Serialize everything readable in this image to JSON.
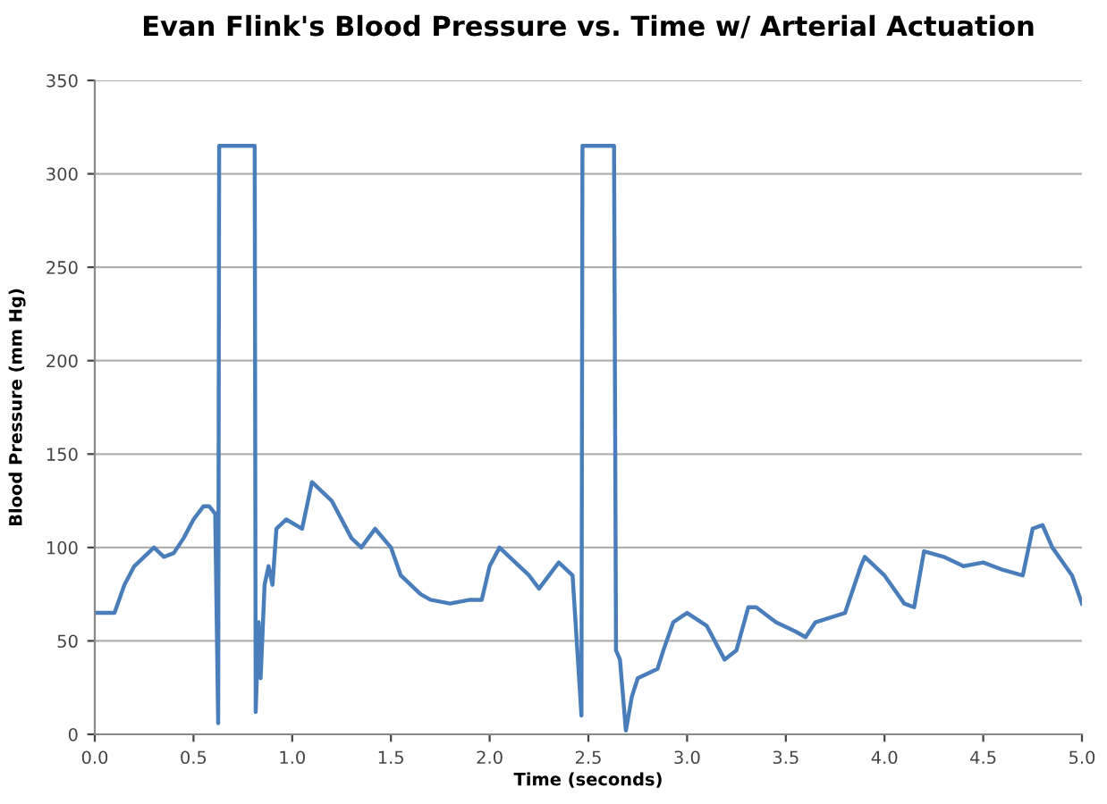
{
  "chart_data": {
    "type": "line",
    "title": "Evan Flink's Blood Pressure vs. Time w/ Arterial Actuation",
    "xlabel": "Time (seconds)",
    "ylabel": "Blood Pressure (mm Hg)",
    "xlim": [
      0,
      5
    ],
    "xticks": [
      {
        "value": 0,
        "label": "0.0"
      },
      {
        "value": 0.5,
        "label": "0.5"
      },
      {
        "value": 1,
        "label": "1.0"
      },
      {
        "value": 1.5,
        "label": "1.5"
      },
      {
        "value": 2,
        "label": "2.0"
      },
      {
        "value": 2.5,
        "label": "2.5"
      },
      {
        "value": 3,
        "label": "3.0"
      },
      {
        "value": 3.5,
        "label": "3.5"
      },
      {
        "value": 4,
        "label": "4.0"
      },
      {
        "value": 4.5,
        "label": "4.5"
      },
      {
        "value": 5,
        "label": "5.0"
      }
    ],
    "ylim": [
      0,
      350
    ],
    "yticks": [
      0,
      50,
      100,
      150,
      200,
      250,
      300,
      350
    ],
    "grid": "y",
    "marker": "none",
    "line_style": "solid",
    "series": [
      {
        "color": "#4a7ebb",
        "x": [
          0.0,
          0.1,
          0.15,
          0.2,
          0.25,
          0.3,
          0.35,
          0.4,
          0.45,
          0.5,
          0.55,
          0.58,
          0.61,
          0.625,
          0.63,
          0.81,
          0.815,
          0.83,
          0.84,
          0.86,
          0.88,
          0.9,
          0.92,
          0.97,
          1.05,
          1.1,
          1.2,
          1.3,
          1.35,
          1.42,
          1.5,
          1.55,
          1.65,
          1.7,
          1.8,
          1.9,
          1.96,
          2.0,
          2.05,
          2.1,
          2.2,
          2.25,
          2.35,
          2.42,
          2.465,
          2.47,
          2.63,
          2.64,
          2.66,
          2.69,
          2.72,
          2.75,
          2.85,
          2.88,
          2.93,
          3.0,
          3.1,
          3.19,
          3.25,
          3.31,
          3.35,
          3.45,
          3.55,
          3.6,
          3.65,
          3.8,
          3.88,
          3.9,
          4.0,
          4.1,
          4.15,
          4.2,
          4.3,
          4.4,
          4.5,
          4.6,
          4.7,
          4.75,
          4.8,
          4.85,
          4.95,
          5.0
        ],
        "values": [
          65,
          65,
          80,
          90,
          95,
          100,
          95,
          97,
          105,
          115,
          122,
          122,
          118,
          6,
          315,
          315,
          12,
          60,
          30,
          80,
          90,
          80,
          110,
          115,
          110,
          135,
          125,
          105,
          100,
          110,
          100,
          85,
          75,
          72,
          70,
          72,
          72,
          90,
          100,
          95,
          85,
          78,
          92,
          85,
          10,
          315,
          315,
          45,
          40,
          2,
          20,
          30,
          35,
          45,
          60,
          65,
          58,
          40,
          45,
          68,
          68,
          60,
          55,
          52,
          60,
          65,
          90,
          95,
          85,
          70,
          68,
          98,
          95,
          90,
          92,
          88,
          85,
          110,
          112,
          100,
          85,
          70
        ]
      }
    ]
  }
}
